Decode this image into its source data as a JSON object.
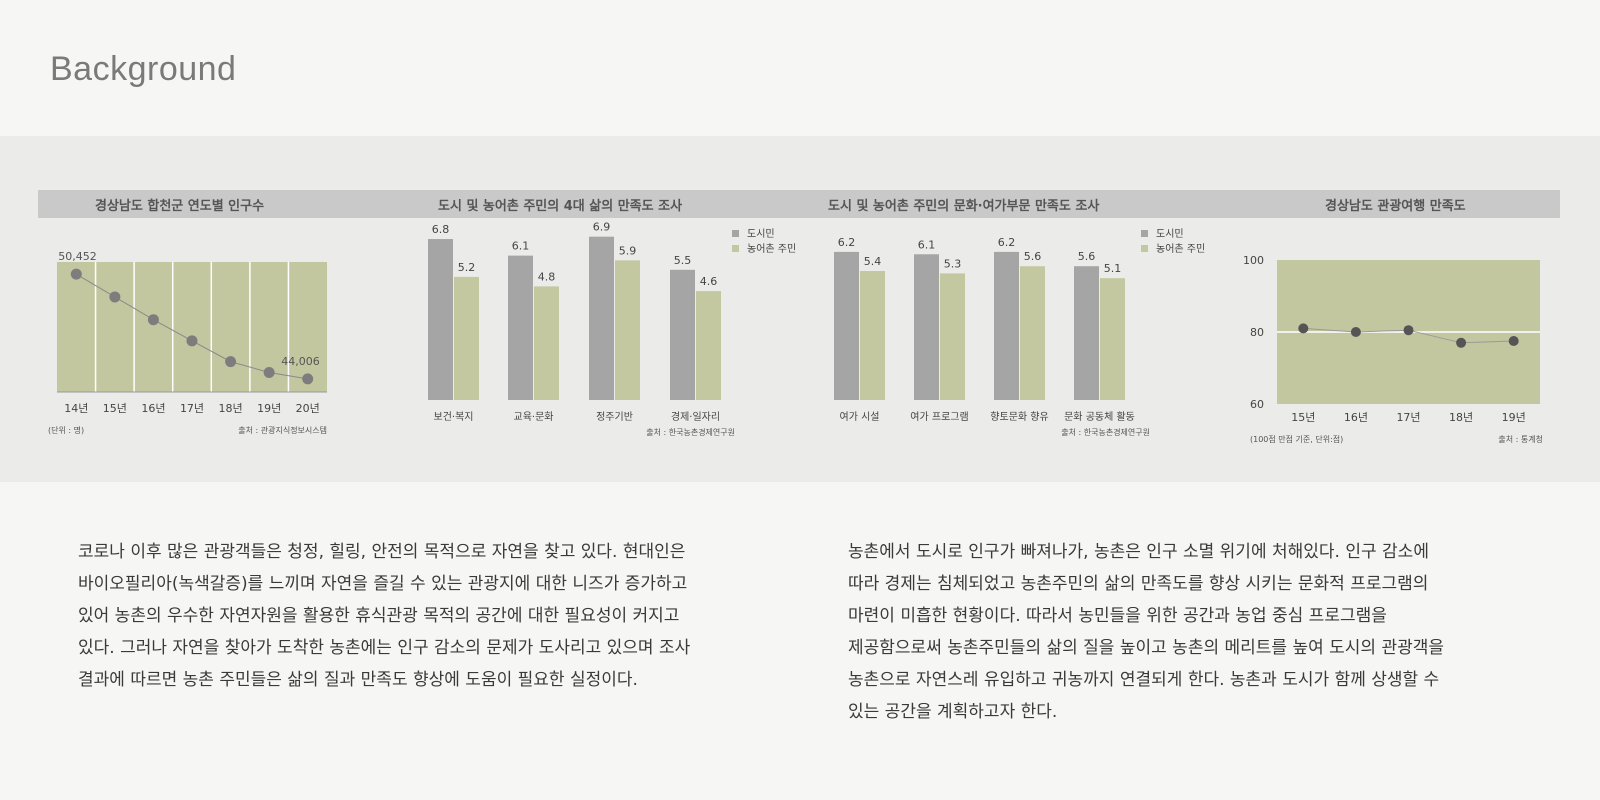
{
  "page": {
    "title": "Background"
  },
  "chart_data": [
    {
      "type": "line",
      "title": "경상남도 합천군 연도별 인구수",
      "categories": [
        "14년",
        "15년",
        "16년",
        "17년",
        "18년",
        "19년",
        "20년"
      ],
      "values": [
        50452,
        49050,
        47650,
        46350,
        45070,
        44400,
        44006
      ],
      "data_labels": {
        "first": "50,452",
        "last": "44,006"
      },
      "unit_note": "(단위 : 명)",
      "source": "출처 : 관광지식정보시스템",
      "grid": true,
      "colors": {
        "plot_bg": "#c2c7a0",
        "line": "#8a8a8a",
        "marker": "#7d7d7d"
      }
    },
    {
      "type": "bar",
      "title": "도시 및 농어촌 주민의 4대 삶의 만족도 조사",
      "categories": [
        "보건·복지",
        "교육·문화",
        "정주기반",
        "경제·일자리"
      ],
      "series": [
        {
          "name": "도시민",
          "values": [
            6.8,
            6.1,
            6.9,
            5.5
          ],
          "color": "#a5a5a5"
        },
        {
          "name": "농어촌 주민",
          "values": [
            5.2,
            4.8,
            5.9,
            4.6
          ],
          "color": "#c3c8a1"
        }
      ],
      "legend": "top-right",
      "source": "출처 : 한국농촌경제연구원"
    },
    {
      "type": "bar",
      "title": "도시 및 농어촌 주민의 문화·여가부문 만족도 조사",
      "categories": [
        "여가 시설",
        "여가 프로그램",
        "향토문화 향유",
        "문화 공동체 활동"
      ],
      "series": [
        {
          "name": "도시민",
          "values": [
            6.2,
            6.1,
            6.2,
            5.6
          ],
          "color": "#a5a5a5"
        },
        {
          "name": "농어촌 주민",
          "values": [
            5.4,
            5.3,
            5.6,
            5.1
          ],
          "color": "#c3c8a1"
        }
      ],
      "legend": "top-right",
      "source": "출처 : 한국농촌경제연구원"
    },
    {
      "type": "line",
      "title": "경상남도 관광여행 만족도",
      "categories": [
        "15년",
        "16년",
        "17년",
        "18년",
        "19년"
      ],
      "values": [
        81.0,
        80.0,
        80.5,
        77.0,
        77.5
      ],
      "ylim": [
        60,
        100
      ],
      "yticks": [
        100,
        80,
        60
      ],
      "unit_note": "(100점 만점 기준, 단위:점)",
      "source": "출처 : 통계청",
      "colors": {
        "plot_bg": "#c2c7a0",
        "line": "#9a9a9a",
        "marker": "#555555"
      }
    }
  ],
  "paragraphs": {
    "left": [
      "코로나 이후 많은 관광객들은 청정, 힐링, 안전의 목적으로 자연을 찾고 있다. 현대인은",
      "바이오필리아(녹색갈증)를  느끼며 자연을 즐길 수 있는 관광지에 대한 니즈가 증가하고",
      "있어 농촌의 우수한 자연자원을 활용한 휴식관광 목적의 공간에 대한 필요성이 커지고",
      "있다. 그러나 자연을 찾아가 도착한 농촌에는 인구 감소의 문제가 도사리고 있으며 조사",
      "결과에 따르면 농촌 주민들은 삶의 질과 만족도 향상에 도움이 필요한 실정이다."
    ],
    "right": [
      "농촌에서 도시로 인구가 빠져나가, 농촌은 인구 소멸 위기에 처해있다. 인구 감소에",
      "따라 경제는 침체되었고 농촌주민의 삶의 만족도를 향상 시키는 문화적 프로그램의",
      "마련이 미흡한 현황이다. 따라서 농민들을 위한 공간과 농업 중심 프로그램을",
      "제공함으로써 농촌주민들의 삶의 질을 높이고 농촌의 메리트를 높여 도시의 관광객을",
      "농촌으로 자연스레 유입하고  귀농까지 연결되게 한다. 농촌과 도시가 함께 상생할 수",
      "있는 공간을 계획하고자 한다."
    ]
  }
}
